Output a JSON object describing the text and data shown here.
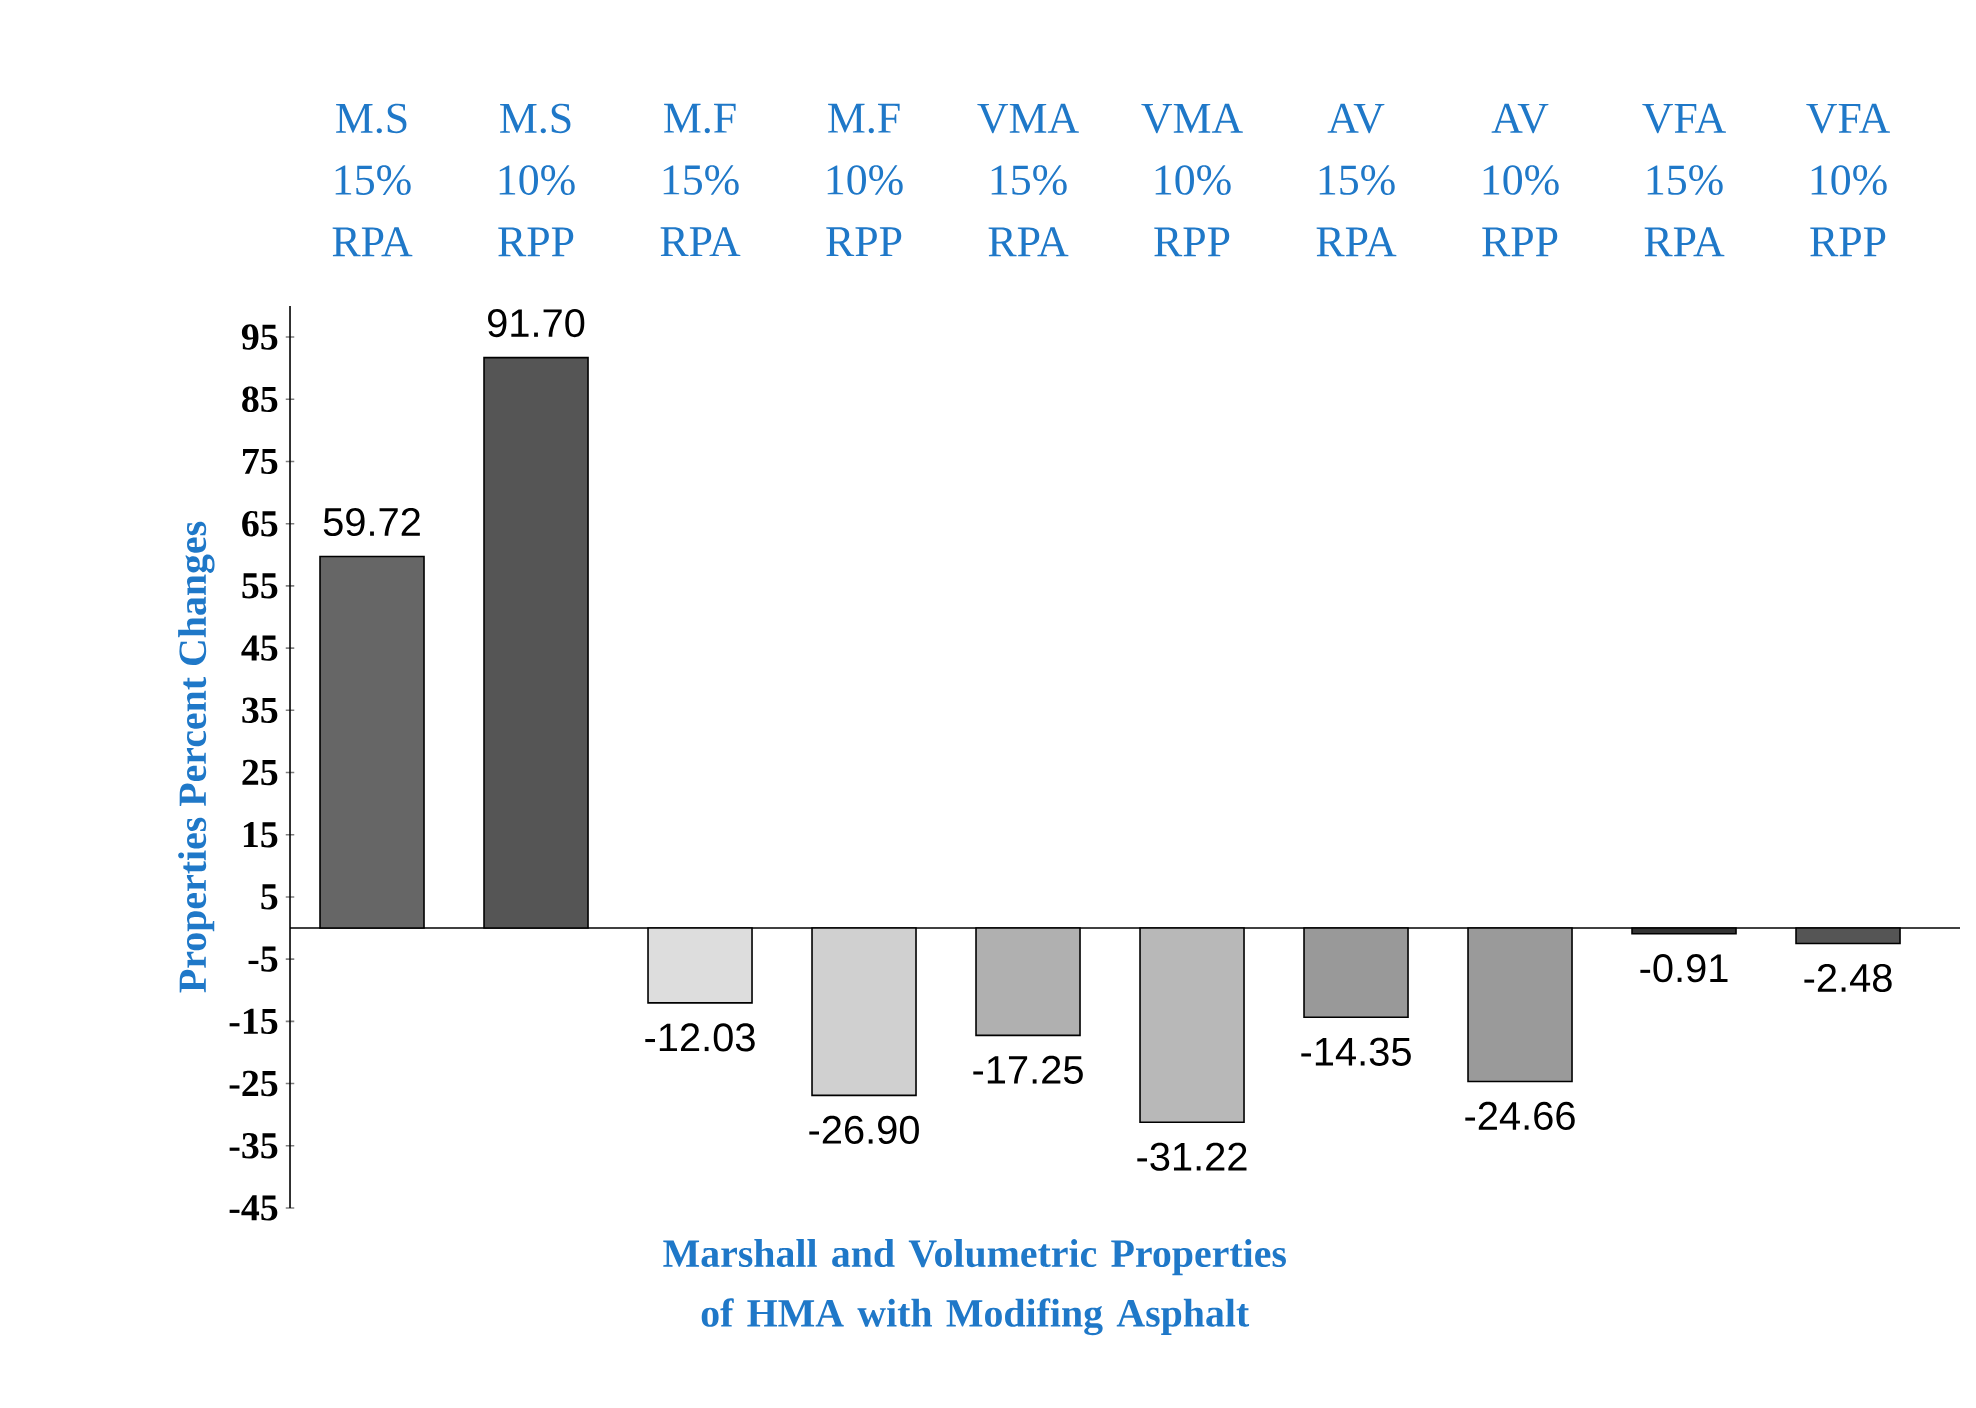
{
  "chart_data": {
    "type": "bar",
    "xlabel": "Marshall and Volumetric Properties of HMA with Modifing Asphalt",
    "ylabel": "Properties Percent Changes",
    "categories": [
      "M.S 15% RPA",
      "M.S 10% RPP",
      "M.F 15% RPA",
      "M.F 10% RPP",
      "VMA 15% RPA",
      "VMA 10% RPP",
      "AV 15% RPA",
      "AV 10% RPP",
      "VFA 15% RPA",
      "VFA 10% RPP"
    ],
    "values": [
      59.72,
      91.7,
      -12.03,
      -26.9,
      -17.25,
      -31.22,
      -14.35,
      -24.66,
      -0.91,
      -2.48
    ],
    "value_labels": [
      "59.72",
      "91.70",
      "-12.03",
      "-26.90",
      "-17.25",
      "-31.22",
      "-14.35",
      "-24.66",
      "-0.91",
      "-2.48"
    ],
    "colors": [
      "#666666",
      "#555555",
      "#dddddd",
      "#d0d0d0",
      "#b0b0b0",
      "#b8b8b8",
      "#999999",
      "#9a9a9a",
      "#333333",
      "#555555"
    ],
    "ylim": [
      -45,
      100
    ],
    "yticks": [
      -45,
      -35,
      -25,
      -15,
      -5,
      5,
      15,
      25,
      35,
      45,
      55,
      65,
      75,
      85,
      95
    ]
  }
}
